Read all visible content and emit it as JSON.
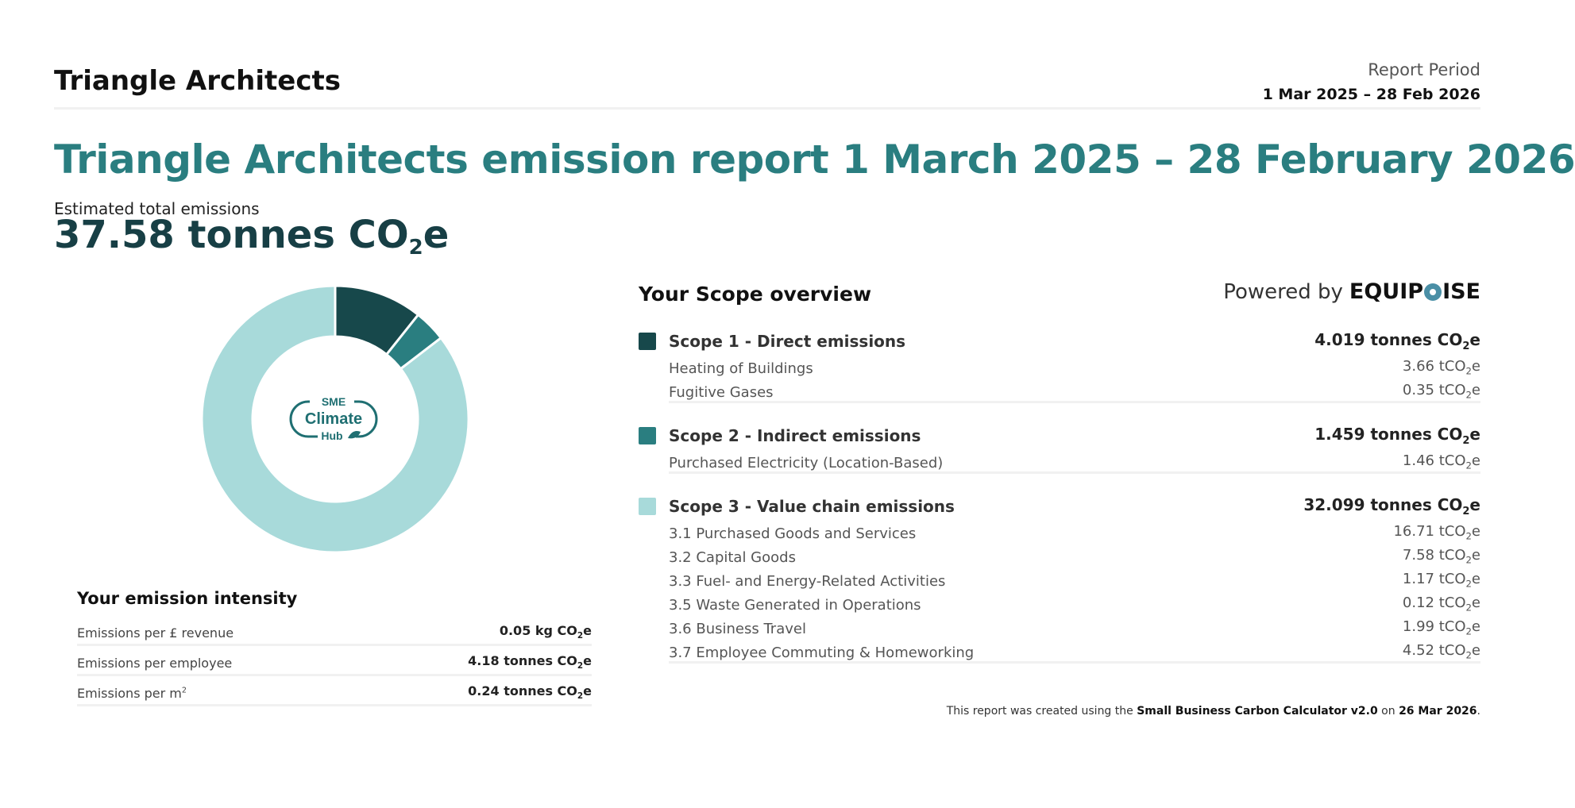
{
  "header": {
    "company": "Triangle Architects",
    "period_label": "Report Period",
    "period_value": "1 Mar 2025 – 28 Feb 2026"
  },
  "report_title": "Triangle Architects emission report 1 March 2025 – 28 February 2026",
  "total": {
    "label": "Estimated total emissions",
    "value_prefix": "37.58 tonnes CO",
    "value_sub": "2",
    "value_suffix": "e"
  },
  "chart_data": {
    "type": "pie",
    "categories": [
      "Scope 1 - Direct emissions",
      "Scope 2 - Indirect emissions",
      "Scope 3 - Value chain emissions"
    ],
    "values": [
      4.019,
      1.459,
      32.099
    ],
    "colors": [
      "#17484b",
      "#2a7e80",
      "#a8dada"
    ]
  },
  "hub_logo": {
    "line1": "SME",
    "line2": "Climate",
    "line3": "Hub"
  },
  "intensity": {
    "title": "Your emission intensity",
    "rows": [
      {
        "label": "Emissions per £ revenue",
        "value": "0.05 kg CO",
        "sub": "2",
        "suffix": "e"
      },
      {
        "label": "Emissions per employee",
        "value": "4.18 tonnes CO",
        "sub": "2",
        "suffix": "e"
      },
      {
        "label": "Emissions per m",
        "label_sup": "2",
        "value": "0.24 tonnes CO",
        "sub": "2",
        "suffix": "e"
      }
    ]
  },
  "scope_overview": {
    "heading": "Your Scope overview",
    "powered_by": "Powered by",
    "brand_left": "EQUIP",
    "brand_right": "ISE",
    "scopes": [
      {
        "title": "Scope 1 - Direct emissions",
        "total": "4.019 tonnes CO",
        "total_sub": "2",
        "total_suffix": "e",
        "color": "#17484b",
        "items": [
          {
            "label": "Heating of Buildings",
            "value": "3.66 tCO",
            "sub": "2",
            "suffix": "e"
          },
          {
            "label": "Fugitive Gases",
            "value": "0.35 tCO",
            "sub": "2",
            "suffix": "e"
          }
        ]
      },
      {
        "title": "Scope 2 - Indirect emissions",
        "total": "1.459 tonnes CO",
        "total_sub": "2",
        "total_suffix": "e",
        "color": "#2a7e80",
        "items": [
          {
            "label": "Purchased Electricity (Location-Based)",
            "value": "1.46 tCO",
            "sub": "2",
            "suffix": "e"
          }
        ]
      },
      {
        "title": "Scope 3 - Value chain emissions",
        "total": "32.099 tonnes CO",
        "total_sub": "2",
        "total_suffix": "e",
        "color": "#a8dada",
        "items": [
          {
            "label": "3.1 Purchased Goods and Services",
            "value": "16.71 tCO",
            "sub": "2",
            "suffix": "e"
          },
          {
            "label": "3.2 Capital Goods",
            "value": "7.58 tCO",
            "sub": "2",
            "suffix": "e"
          },
          {
            "label": "3.3 Fuel- and Energy-Related Activities",
            "value": "1.17 tCO",
            "sub": "2",
            "suffix": "e"
          },
          {
            "label": "3.5 Waste Generated in Operations",
            "value": "0.12 tCO",
            "sub": "2",
            "suffix": "e"
          },
          {
            "label": "3.6 Business Travel",
            "value": "1.99 tCO",
            "sub": "2",
            "suffix": "e"
          },
          {
            "label": "3.7 Employee Commuting & Homeworking",
            "value": "4.52 tCO",
            "sub": "2",
            "suffix": "e"
          }
        ]
      }
    ]
  },
  "footer": {
    "prefix": "This report was created using the ",
    "tool": "Small Business Carbon Calculator v2.0",
    "middle": " on ",
    "date": "26 Mar 2026",
    "suffix": "."
  }
}
